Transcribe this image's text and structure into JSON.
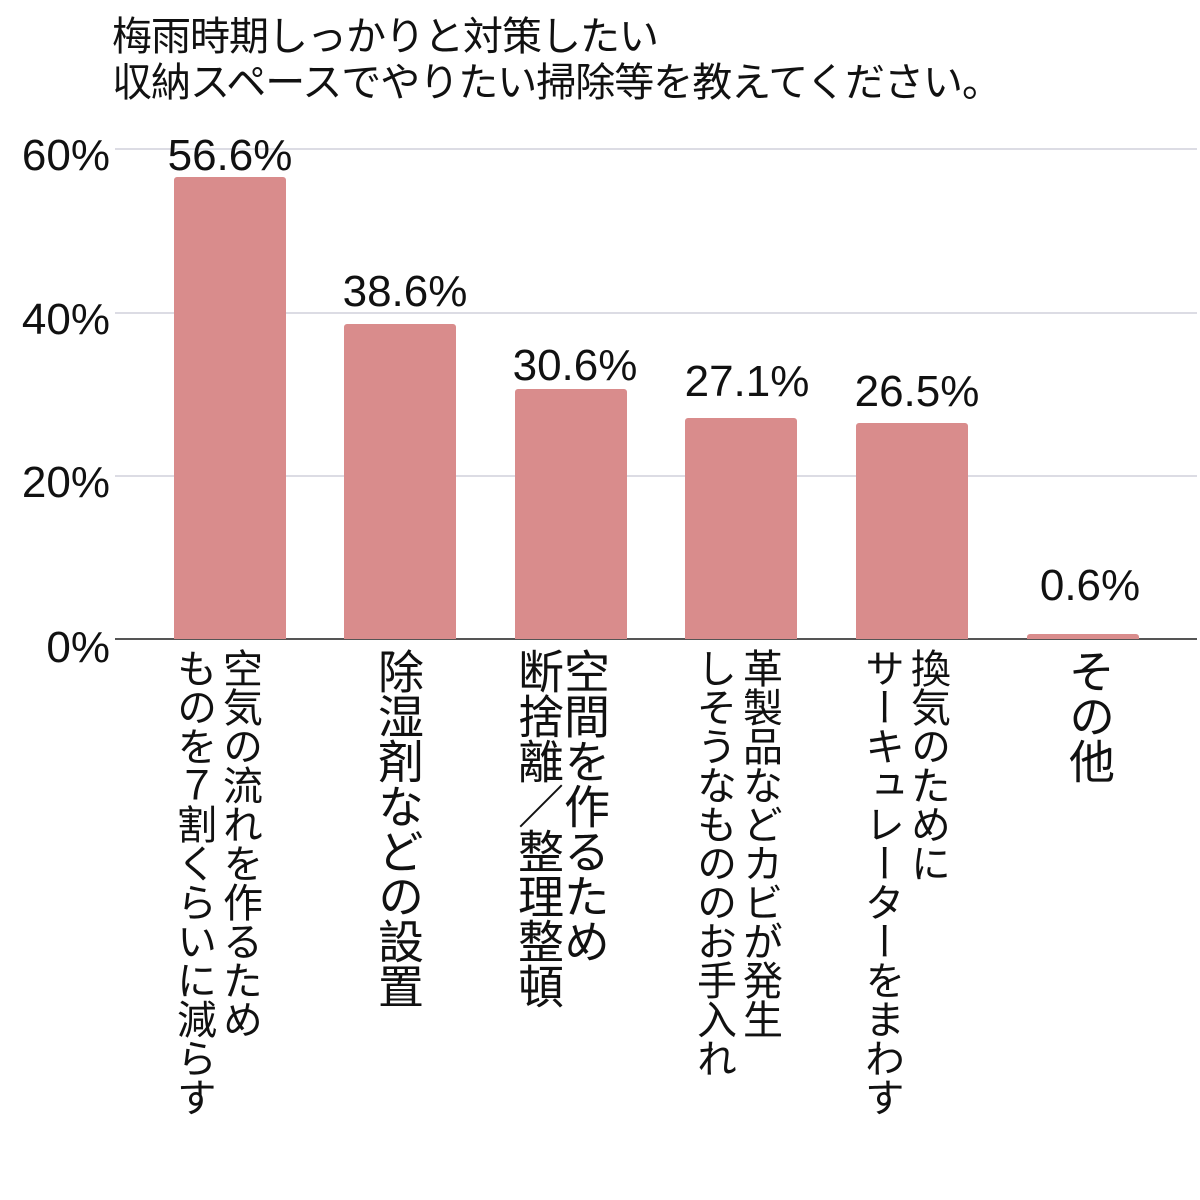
{
  "chart_data": {
    "type": "bar",
    "title": "梅雨時期しっかりと対策したい 収納スペースでやりたい掃除等を教えてください。",
    "title_lines": [
      "梅雨時期しっかりと対策したい",
      "収納スペースでやりたい掃除等を教えてください。"
    ],
    "categories": [
      "空気の流れを作るため ものを７割くらいに減らす",
      "除湿剤などの設置",
      "空間を作るため 断捨離／整理整頓",
      "革製品などカビが発生しそうなもののお手入れ",
      "換気のために サーキュレーターをまわす",
      "その他"
    ],
    "category_lines": [
      [
        "空気の流れを作るため",
        "ものを７割くらいに減らす"
      ],
      [
        "除湿剤などの設置"
      ],
      [
        "空間を作るため",
        "断捨離／整理整頓"
      ],
      [
        "革製品などカビが発生",
        "しそうなもののお手入れ"
      ],
      [
        "換気のために",
        "サーキュレーターをまわす"
      ],
      [
        "その他"
      ]
    ],
    "values": [
      56.6,
      38.6,
      30.6,
      27.1,
      26.5,
      0.6
    ],
    "value_labels": [
      "56.6%",
      "38.6%",
      "30.6%",
      "27.1%",
      "26.5%",
      "0.6%"
    ],
    "xlabel": "",
    "ylabel": "",
    "ylim": [
      0,
      60
    ],
    "yticks": [
      "0%",
      "20%",
      "40%",
      "60%"
    ],
    "grid": true,
    "legend": null,
    "bar_color": "#d98c8c"
  }
}
